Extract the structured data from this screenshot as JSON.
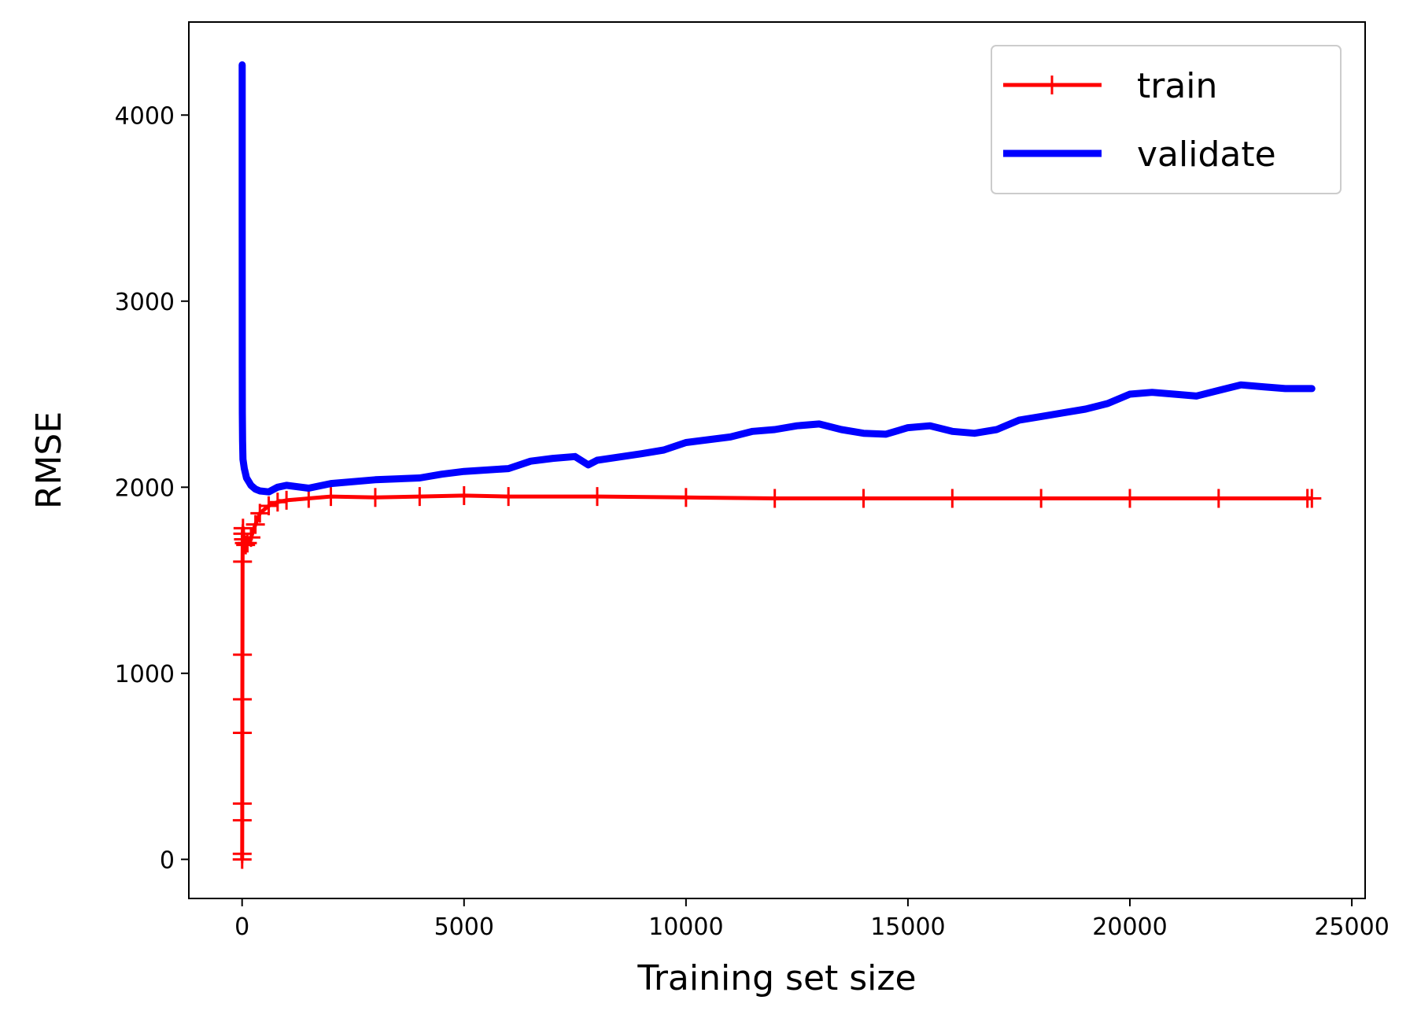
{
  "chart_data": {
    "type": "line",
    "title": "",
    "xlabel": "Training set size",
    "ylabel": "RMSE",
    "xlim": [
      -1200,
      25300
    ],
    "ylim": [
      -210,
      4500
    ],
    "xticks": [
      0,
      5000,
      10000,
      15000,
      20000,
      25000
    ],
    "xtick_labels": [
      "0",
      "5000",
      "10000",
      "15000",
      "20000",
      "25000"
    ],
    "yticks": [
      0,
      1000,
      2000,
      3000,
      4000
    ],
    "ytick_labels": [
      "0",
      "1000",
      "2000",
      "3000",
      "4000"
    ],
    "grid": false,
    "legend_position": "top-right",
    "series": [
      {
        "name": "train",
        "color": "#ff0000",
        "marker": "plus",
        "x": [
          1,
          2,
          3,
          4,
          5,
          6,
          8,
          10,
          15,
          20,
          30,
          50,
          80,
          120,
          200,
          300,
          400,
          600,
          800,
          1000,
          1500,
          2000,
          3000,
          4000,
          5000,
          6000,
          8000,
          10000,
          12000,
          14000,
          16000,
          18000,
          20000,
          22000,
          24000,
          24100
        ],
        "values": [
          0,
          30,
          210,
          300,
          680,
          860,
          1100,
          1600,
          1750,
          1780,
          1720,
          1700,
          1690,
          1700,
          1730,
          1800,
          1860,
          1900,
          1920,
          1930,
          1940,
          1950,
          1945,
          1950,
          1955,
          1950,
          1950,
          1945,
          1940,
          1940,
          1940,
          1940,
          1940,
          1940,
          1940,
          1940
        ]
      },
      {
        "name": "validate",
        "color": "#0000ff",
        "marker": "none",
        "x": [
          1,
          2,
          3,
          5,
          10,
          20,
          50,
          80,
          100,
          150,
          200,
          300,
          400,
          600,
          800,
          1000,
          1500,
          2000,
          3000,
          4000,
          4500,
          5000,
          6000,
          6500,
          7000,
          7500,
          7800,
          8000,
          9000,
          9500,
          10000,
          11000,
          11500,
          12000,
          12500,
          13000,
          13500,
          14000,
          14500,
          15000,
          15500,
          16000,
          16500,
          17000,
          17500,
          18000,
          18500,
          19000,
          19500,
          20000,
          20500,
          21000,
          21500,
          22000,
          22500,
          23000,
          23500,
          24000,
          24100
        ],
        "values": [
          4270,
          3500,
          2650,
          2400,
          2250,
          2150,
          2100,
          2070,
          2050,
          2030,
          2010,
          1990,
          1980,
          1975,
          2000,
          2010,
          1995,
          2020,
          2040,
          2050,
          2070,
          2085,
          2100,
          2140,
          2155,
          2165,
          2120,
          2145,
          2180,
          2200,
          2240,
          2270,
          2300,
          2310,
          2330,
          2340,
          2310,
          2290,
          2285,
          2320,
          2330,
          2300,
          2290,
          2310,
          2360,
          2380,
          2400,
          2420,
          2450,
          2500,
          2510,
          2500,
          2490,
          2520,
          2550,
          2540,
          2530,
          2530,
          2530
        ]
      }
    ]
  }
}
